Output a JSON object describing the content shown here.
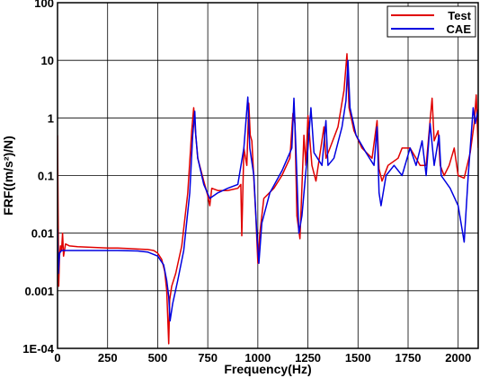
{
  "chart_data": {
    "type": "line",
    "title": "",
    "xlabel": "Frequency(Hz)",
    "ylabel": "FRF((m/s²)/N)",
    "xlim": [
      0,
      2100
    ],
    "ylim": [
      0.0001,
      100
    ],
    "yscale": "log",
    "grid": true,
    "legend_position": "top-right",
    "x_ticks": [
      0,
      250,
      500,
      750,
      1000,
      1250,
      1500,
      1750,
      2000
    ],
    "x_tick_labels": [
      "0",
      "250",
      "500",
      "750",
      "1000",
      "1250",
      "1500",
      "1750",
      "2000"
    ],
    "y_ticks": [
      0.0001,
      0.001,
      0.01,
      0.1,
      1,
      10,
      100
    ],
    "y_tick_labels": [
      "1E-04",
      "0.001",
      "0.01",
      "0.1",
      "1",
      "10",
      "100"
    ],
    "series": [
      {
        "name": "Test",
        "color": "#e00000",
        "points": [
          [
            0,
            0.5
          ],
          [
            3,
            0.02
          ],
          [
            6,
            0.0012
          ],
          [
            10,
            0.004
          ],
          [
            15,
            0.006
          ],
          [
            20,
            0.005
          ],
          [
            25,
            0.01
          ],
          [
            30,
            0.004
          ],
          [
            40,
            0.0065
          ],
          [
            60,
            0.006
          ],
          [
            100,
            0.0058
          ],
          [
            150,
            0.0057
          ],
          [
            200,
            0.0056
          ],
          [
            250,
            0.0055
          ],
          [
            300,
            0.0055
          ],
          [
            350,
            0.0054
          ],
          [
            400,
            0.0053
          ],
          [
            450,
            0.0052
          ],
          [
            480,
            0.005
          ],
          [
            500,
            0.0045
          ],
          [
            520,
            0.0035
          ],
          [
            535,
            0.0022
          ],
          [
            545,
            0.001
          ],
          [
            555,
            0.00012
          ],
          [
            560,
            0.0007
          ],
          [
            570,
            0.0012
          ],
          [
            590,
            0.002
          ],
          [
            620,
            0.006
          ],
          [
            650,
            0.05
          ],
          [
            670,
            0.6
          ],
          [
            680,
            1.5
          ],
          [
            690,
            0.5
          ],
          [
            700,
            0.2
          ],
          [
            730,
            0.08
          ],
          [
            750,
            0.045
          ],
          [
            760,
            0.03
          ],
          [
            770,
            0.06
          ],
          [
            800,
            0.055
          ],
          [
            850,
            0.055
          ],
          [
            900,
            0.06
          ],
          [
            915,
            0.07
          ],
          [
            920,
            0.009
          ],
          [
            930,
            0.3
          ],
          [
            945,
            0.15
          ],
          [
            955,
            1.8
          ],
          [
            962,
            0.5
          ],
          [
            970,
            0.4
          ],
          [
            990,
            0.02
          ],
          [
            1000,
            0.003
          ],
          [
            1010,
            0.01
          ],
          [
            1030,
            0.04
          ],
          [
            1080,
            0.06
          ],
          [
            1120,
            0.1
          ],
          [
            1160,
            0.2
          ],
          [
            1175,
            1.2
          ],
          [
            1185,
            0.8
          ],
          [
            1195,
            0.02
          ],
          [
            1210,
            0.008
          ],
          [
            1230,
            0.5
          ],
          [
            1240,
            0.15
          ],
          [
            1250,
            1.1
          ],
          [
            1270,
            0.15
          ],
          [
            1290,
            0.08
          ],
          [
            1330,
            0.7
          ],
          [
            1340,
            0.2
          ],
          [
            1360,
            0.3
          ],
          [
            1400,
            0.7
          ],
          [
            1430,
            3
          ],
          [
            1445,
            13
          ],
          [
            1455,
            1.5
          ],
          [
            1480,
            0.6
          ],
          [
            1520,
            0.3
          ],
          [
            1570,
            0.2
          ],
          [
            1595,
            0.9
          ],
          [
            1605,
            0.13
          ],
          [
            1620,
            0.08
          ],
          [
            1650,
            0.15
          ],
          [
            1700,
            0.2
          ],
          [
            1720,
            0.3
          ],
          [
            1760,
            0.3
          ],
          [
            1790,
            0.2
          ],
          [
            1810,
            0.15
          ],
          [
            1840,
            0.15
          ],
          [
            1870,
            2.2
          ],
          [
            1880,
            0.4
          ],
          [
            1900,
            0.6
          ],
          [
            1910,
            0.15
          ],
          [
            1930,
            0.1
          ],
          [
            1955,
            0.15
          ],
          [
            1980,
            0.3
          ],
          [
            2000,
            0.1
          ],
          [
            2030,
            0.09
          ],
          [
            2060,
            0.25
          ],
          [
            2080,
            0.8
          ],
          [
            2090,
            2.5
          ],
          [
            2100,
            0.3
          ]
        ]
      },
      {
        "name": "CAE",
        "color": "#0000e0",
        "points": [
          [
            0,
            0.012
          ],
          [
            4,
            0.002
          ],
          [
            10,
            0.0045
          ],
          [
            20,
            0.005
          ],
          [
            50,
            0.005
          ],
          [
            100,
            0.005
          ],
          [
            200,
            0.005
          ],
          [
            300,
            0.005
          ],
          [
            400,
            0.0049
          ],
          [
            450,
            0.0047
          ],
          [
            500,
            0.004
          ],
          [
            530,
            0.0028
          ],
          [
            545,
            0.0015
          ],
          [
            555,
            0.0008
          ],
          [
            562,
            0.0003
          ],
          [
            575,
            0.0006
          ],
          [
            600,
            0.0015
          ],
          [
            630,
            0.005
          ],
          [
            660,
            0.05
          ],
          [
            675,
            0.5
          ],
          [
            685,
            1.3
          ],
          [
            690,
            0.5
          ],
          [
            700,
            0.2
          ],
          [
            730,
            0.07
          ],
          [
            760,
            0.04
          ],
          [
            800,
            0.05
          ],
          [
            850,
            0.06
          ],
          [
            900,
            0.07
          ],
          [
            930,
            0.3
          ],
          [
            950,
            2.3
          ],
          [
            960,
            0.3
          ],
          [
            980,
            0.1
          ],
          [
            995,
            0.01
          ],
          [
            1005,
            0.003
          ],
          [
            1020,
            0.015
          ],
          [
            1060,
            0.05
          ],
          [
            1120,
            0.12
          ],
          [
            1170,
            0.3
          ],
          [
            1180,
            2.2
          ],
          [
            1190,
            0.3
          ],
          [
            1205,
            0.01
          ],
          [
            1220,
            0.02
          ],
          [
            1250,
            0.3
          ],
          [
            1265,
            1.5
          ],
          [
            1280,
            0.25
          ],
          [
            1320,
            0.15
          ],
          [
            1340,
            0.9
          ],
          [
            1350,
            0.15
          ],
          [
            1380,
            0.2
          ],
          [
            1420,
            0.7
          ],
          [
            1440,
            2
          ],
          [
            1450,
            10
          ],
          [
            1460,
            1.5
          ],
          [
            1490,
            0.5
          ],
          [
            1540,
            0.25
          ],
          [
            1580,
            0.15
          ],
          [
            1595,
            0.7
          ],
          [
            1605,
            0.05
          ],
          [
            1615,
            0.03
          ],
          [
            1640,
            0.1
          ],
          [
            1680,
            0.15
          ],
          [
            1720,
            0.1
          ],
          [
            1760,
            0.3
          ],
          [
            1790,
            0.15
          ],
          [
            1820,
            0.4
          ],
          [
            1840,
            0.1
          ],
          [
            1860,
            0.8
          ],
          [
            1880,
            0.15
          ],
          [
            1905,
            0.5
          ],
          [
            1915,
            0.1
          ],
          [
            1960,
            0.06
          ],
          [
            2000,
            0.03
          ],
          [
            2030,
            0.007
          ],
          [
            2050,
            0.1
          ],
          [
            2065,
            0.5
          ],
          [
            2075,
            1.5
          ],
          [
            2085,
            0.8
          ],
          [
            2100,
            1.4
          ]
        ]
      }
    ]
  }
}
